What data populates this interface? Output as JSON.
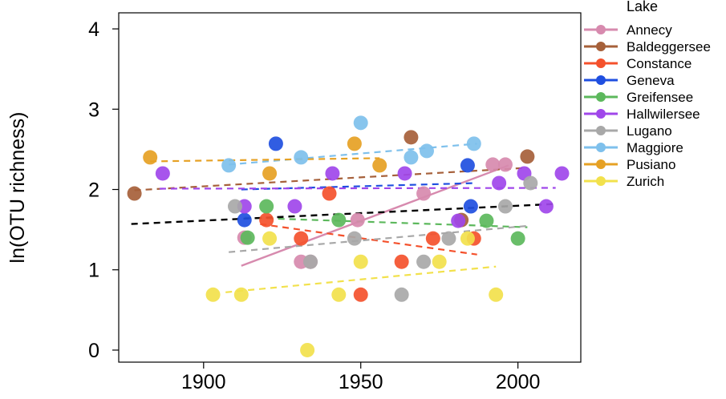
{
  "chart_data": {
    "type": "scatter",
    "title": "",
    "xlabel": "",
    "ylabel": "ln(OTU richness)",
    "xlim": [
      1873,
      2020
    ],
    "ylim": [
      -0.15,
      4.2
    ],
    "xticks": [
      1900,
      1950,
      2000
    ],
    "yticks": [
      0,
      1,
      2,
      3,
      4
    ],
    "grid": false,
    "legend": {
      "title": "Lake",
      "position": "right"
    },
    "series": [
      {
        "name": "Annecy",
        "color": "#d78aae",
        "line_style": "solid",
        "points": [
          [
            1913,
            1.4
          ],
          [
            1931,
            1.1
          ],
          [
            1934,
            1.1
          ],
          [
            1949,
            1.62
          ],
          [
            1970,
            1.95
          ],
          [
            1992,
            2.31
          ],
          [
            1996,
            2.31
          ]
        ],
        "trend": [
          [
            1912,
            1.05
          ],
          [
            1997,
            2.3
          ]
        ]
      },
      {
        "name": "Baldeggersee",
        "color": "#a6603a",
        "line_style": "dashed",
        "points": [
          [
            1878,
            1.95
          ],
          [
            1966,
            2.65
          ],
          [
            1982,
            1.62
          ],
          [
            2003,
            2.41
          ]
        ],
        "trend": [
          [
            1878,
            1.99
          ],
          [
            2003,
            2.27
          ]
        ]
      },
      {
        "name": "Constance",
        "color": "#f4512c",
        "line_style": "dashed",
        "points": [
          [
            1920,
            1.62
          ],
          [
            1931,
            1.39
          ],
          [
            1940,
            1.95
          ],
          [
            1950,
            0.69
          ],
          [
            1963,
            1.1
          ],
          [
            1973,
            1.39
          ],
          [
            1986,
            1.39
          ]
        ],
        "trend": [
          [
            1918,
            1.57
          ],
          [
            1987,
            1.19
          ]
        ]
      },
      {
        "name": "Geneva",
        "color": "#1f4fe0",
        "line_style": "dashed",
        "points": [
          [
            1913,
            1.62
          ],
          [
            1923,
            2.57
          ],
          [
            1984,
            2.3
          ],
          [
            1985,
            1.79
          ]
        ],
        "trend": [
          [
            1912,
            2.0
          ],
          [
            1987,
            2.08
          ]
        ]
      },
      {
        "name": "Greifensee",
        "color": "#5cb85c",
        "line_style": "dashed",
        "points": [
          [
            1914,
            1.4
          ],
          [
            1920,
            1.79
          ],
          [
            1943,
            1.62
          ],
          [
            1990,
            1.61
          ],
          [
            2000,
            1.39
          ]
        ],
        "trend": [
          [
            1913,
            1.65
          ],
          [
            2003,
            1.53
          ]
        ]
      },
      {
        "name": "Hallwilersee",
        "color": "#a047ea",
        "line_style": "dashed",
        "points": [
          [
            1887,
            2.2
          ],
          [
            1913,
            1.79
          ],
          [
            1929,
            1.79
          ],
          [
            1941,
            2.2
          ],
          [
            1964,
            2.2
          ],
          [
            1981,
            1.61
          ],
          [
            1994,
            2.08
          ],
          [
            2002,
            2.2
          ],
          [
            2009,
            1.79
          ],
          [
            2014,
            2.2
          ]
        ],
        "trend": [
          [
            1886,
            2.01
          ],
          [
            2012,
            2.02
          ]
        ]
      },
      {
        "name": "Lugano",
        "color": "#a8a8a8",
        "line_style": "dashed",
        "points": [
          [
            1910,
            1.79
          ],
          [
            1934,
            1.1
          ],
          [
            1948,
            1.39
          ],
          [
            1963,
            0.69
          ],
          [
            1970,
            1.1
          ],
          [
            1978,
            1.39
          ],
          [
            1996,
            1.79
          ],
          [
            2004,
            2.08
          ]
        ],
        "trend": [
          [
            1908,
            1.22
          ],
          [
            2004,
            1.55
          ]
        ]
      },
      {
        "name": "Maggiore",
        "color": "#7ec0ec",
        "line_style": "dashed",
        "points": [
          [
            1908,
            2.3
          ],
          [
            1931,
            2.4
          ],
          [
            1950,
            2.83
          ],
          [
            1966,
            2.4
          ],
          [
            1971,
            2.48
          ],
          [
            1986,
            2.57
          ]
        ],
        "trend": [
          [
            1908,
            2.31
          ],
          [
            1987,
            2.57
          ]
        ]
      },
      {
        "name": "Pusiano",
        "color": "#e6a124",
        "line_style": "dashed",
        "points": [
          [
            1883,
            2.4
          ],
          [
            1921,
            2.2
          ],
          [
            1948,
            2.57
          ],
          [
            1956,
            2.3
          ]
        ],
        "trend": [
          [
            1883,
            2.35
          ],
          [
            1956,
            2.39
          ]
        ]
      },
      {
        "name": "Zurich",
        "color": "#f2e14c",
        "line_style": "dashed",
        "points": [
          [
            1903,
            0.69
          ],
          [
            1912,
            0.69
          ],
          [
            1921,
            1.39
          ],
          [
            1933,
            0.0
          ],
          [
            1943,
            0.69
          ],
          [
            1950,
            1.1
          ],
          [
            1975,
            1.1
          ],
          [
            1984,
            1.39
          ],
          [
            1993,
            0.69
          ]
        ],
        "trend": [
          [
            1907,
            0.72
          ],
          [
            1993,
            1.04
          ]
        ]
      }
    ],
    "overall_trend": {
      "color": "#000000",
      "line_style": "dashed",
      "points": [
        [
          1877,
          1.57
        ],
        [
          2012,
          1.82
        ]
      ]
    }
  }
}
